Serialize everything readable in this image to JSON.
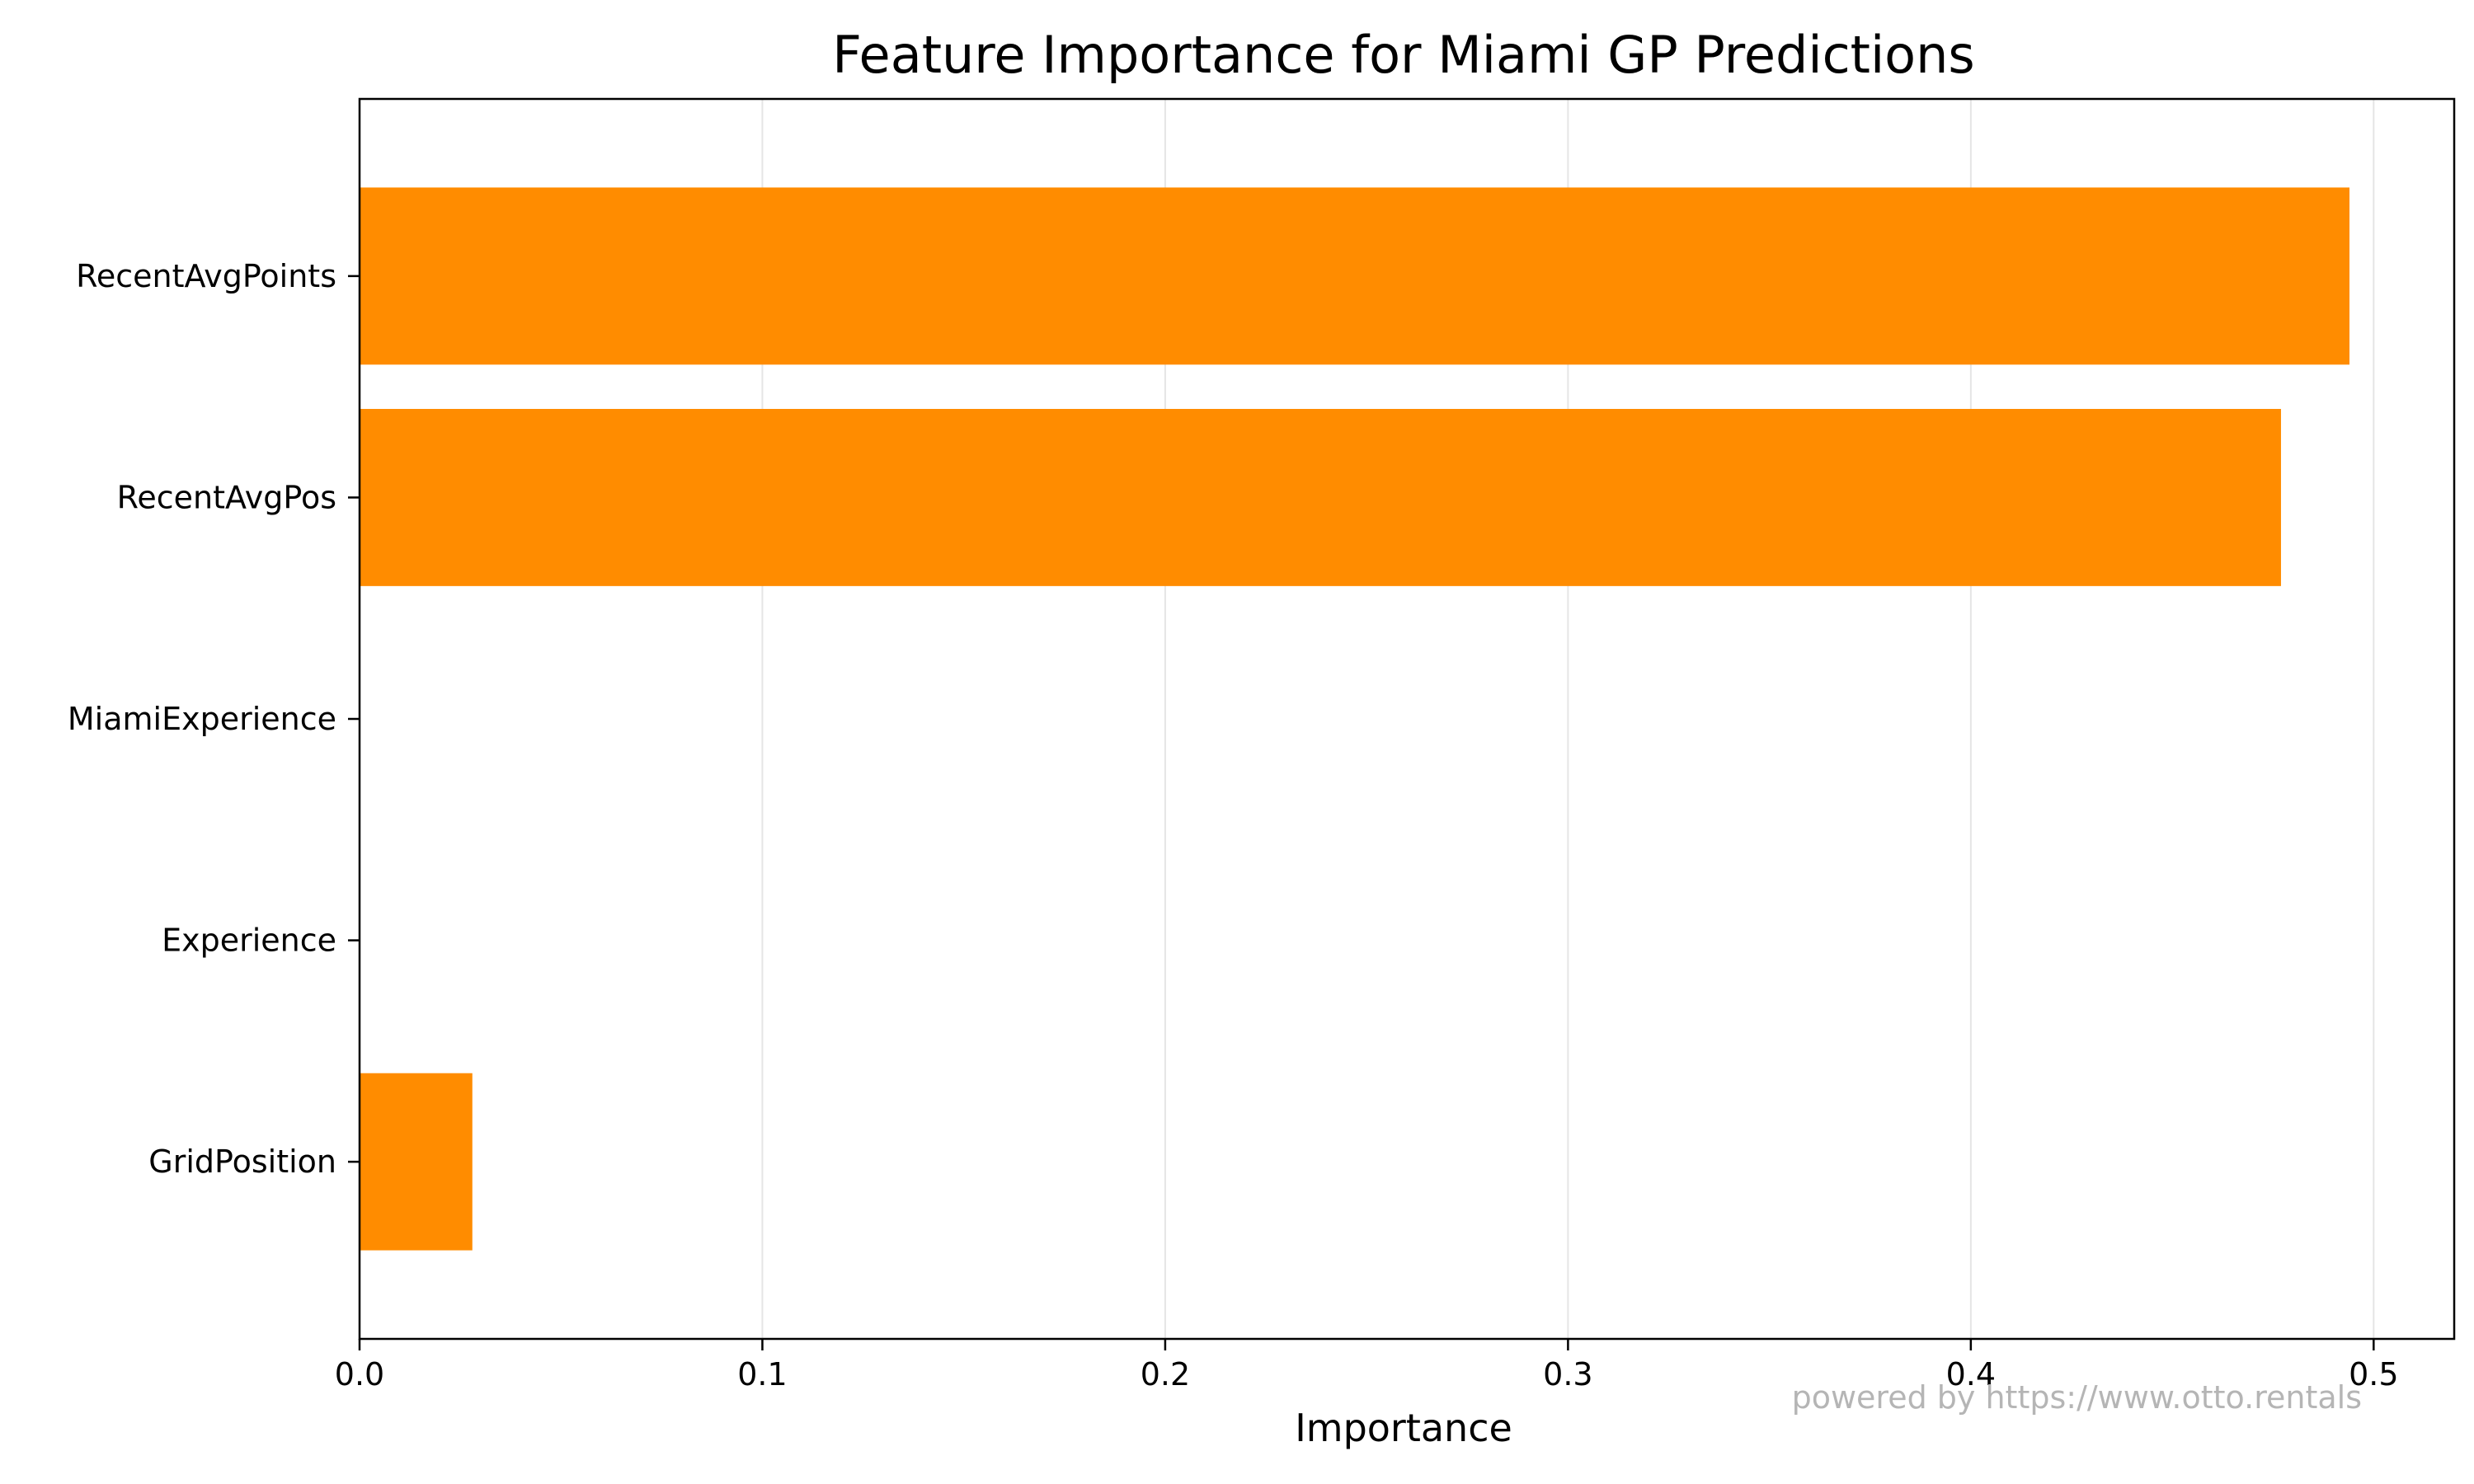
{
  "chart_data": {
    "type": "bar",
    "orientation": "horizontal",
    "title": "Feature Importance for Miami GP Predictions",
    "xlabel": "Importance",
    "ylabel": "",
    "categories": [
      "RecentAvgPoints",
      "RecentAvgPos",
      "MiamiExperience",
      "Experience",
      "GridPosition"
    ],
    "values": [
      0.494,
      0.477,
      0.0,
      0.0,
      0.028
    ],
    "xlim": [
      0,
      0.52
    ],
    "xticks": [
      0.0,
      0.1,
      0.2,
      0.3,
      0.4,
      0.5
    ],
    "xtick_labels": [
      "0.0",
      "0.1",
      "0.2",
      "0.3",
      "0.4",
      "0.5"
    ],
    "grid": "vertical",
    "bar_color": "#ff8c00",
    "grid_color": "#e5e5e5"
  },
  "watermark": "powered by https://www.otto.rentals"
}
